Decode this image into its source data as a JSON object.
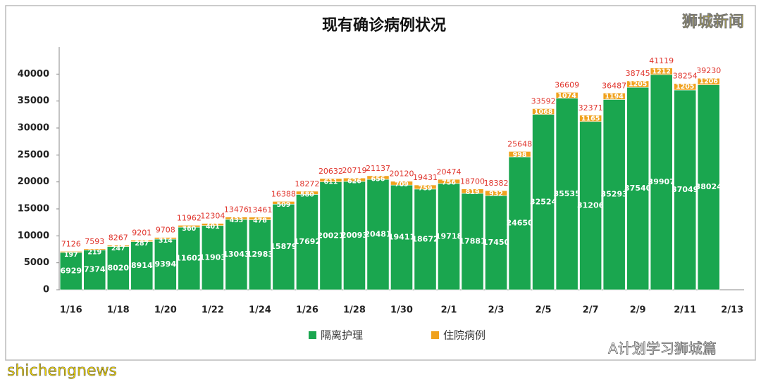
{
  "chart_data": {
    "type": "stacked-bar",
    "title": "现有确诊病例状况",
    "categories": [
      "1/16",
      null,
      "1/18",
      null,
      "1/20",
      null,
      "1/22",
      null,
      "1/24",
      null,
      "1/26",
      null,
      "1/28",
      null,
      "1/30",
      null,
      "2/1",
      null,
      "2/3",
      null,
      "2/5",
      null,
      "2/7",
      null,
      "2/9",
      null,
      "2/11",
      null,
      "2/13"
    ],
    "series": [
      {
        "name": "隔离护理",
        "color": "#1aa64f",
        "values": [
          6929,
          7374,
          8020,
          8914,
          9394,
          11602,
          11903,
          13043,
          12983,
          15879,
          17692,
          20021,
          20093,
          20481,
          19411,
          18672,
          19718,
          17881,
          17450,
          24650,
          32524,
          35535,
          31206,
          35293,
          37540,
          39907,
          37049,
          38024,
          null
        ]
      },
      {
        "name": "住院病例",
        "color": "#f0a21e",
        "values": [
          197,
          219,
          247,
          287,
          314,
          360,
          401,
          433,
          478,
          509,
          580,
          611,
          626,
          656,
          709,
          759,
          756,
          819,
          932,
          998,
          1068,
          1074,
          1165,
          1194,
          1205,
          1212,
          1205,
          1206,
          null
        ]
      }
    ],
    "totals": [
      7126,
      7593,
      8267,
      9201,
      9708,
      11962,
      12304,
      13476,
      13461,
      16388,
      18272,
      20632,
      20719,
      21137,
      20120,
      19431,
      20474,
      18700,
      18382,
      25648,
      33592,
      36609,
      32371,
      36487,
      38745,
      41119,
      38254,
      39230,
      null
    ],
    "totals_color": "#e0342c",
    "ylim": [
      0,
      45000
    ],
    "yticks": [
      0,
      5000,
      10000,
      15000,
      20000,
      25000,
      30000,
      35000,
      40000
    ],
    "grid": false,
    "legend": "bottom",
    "watermarks": [
      "狮城新闻",
      "A计划学习狮城篇",
      "shichengnews"
    ]
  }
}
